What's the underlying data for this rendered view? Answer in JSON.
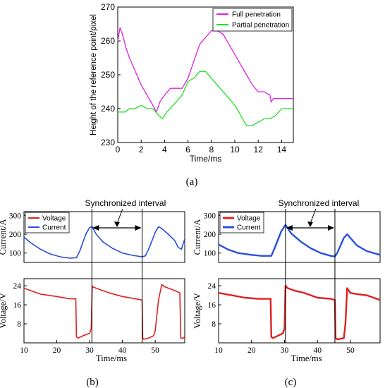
{
  "panel_labels": {
    "a": "(a)",
    "b": "(b)",
    "c": "(c)"
  },
  "annotations": {
    "sync_b": "Synchronized interval",
    "sync_c": "Synchronized interval"
  },
  "colors": {
    "full": "#e020e0",
    "partial": "#22e022",
    "voltage": "#e02020",
    "current": "#2a4ee0"
  },
  "chart_data": [
    {
      "id": "a",
      "type": "line",
      "xlabel": "Time/ms",
      "ylabel": "Height of the reference point/pixel",
      "xlim": [
        0,
        15
      ],
      "ylim": [
        230,
        270
      ],
      "xticks": [
        "0",
        "2",
        "4",
        "6",
        "8",
        "10",
        "12",
        "14"
      ],
      "yticks": [
        "230",
        "240",
        "250",
        "260",
        "270"
      ],
      "legend_position": "top-right",
      "series": [
        {
          "name": "Full penetration",
          "x": [
            0,
            0.2,
            0.4,
            0.7,
            1,
            1.5,
            2,
            2.5,
            3,
            3.3,
            3.6,
            4,
            4.5,
            5,
            5.5,
            6,
            6.5,
            7,
            7.5,
            8,
            8.5,
            9,
            9.5,
            10,
            10.5,
            11,
            11.5,
            12,
            12.5,
            13,
            13.1,
            13.3,
            14,
            15
          ],
          "y": [
            260,
            264,
            262,
            258,
            255,
            251,
            247,
            244,
            241,
            239,
            242,
            244,
            246,
            246,
            246,
            249,
            254,
            259,
            261,
            263,
            263,
            262,
            259,
            256,
            253,
            250,
            247,
            245,
            245,
            244,
            242,
            243,
            243,
            243
          ]
        },
        {
          "name": "Partial penetration",
          "x": [
            0,
            0.6,
            1,
            1.5,
            2,
            2.5,
            3,
            3.5,
            3.8,
            4.2,
            5,
            5.5,
            6,
            6.5,
            7,
            7.5,
            8,
            8.5,
            9,
            9.5,
            10,
            10.5,
            11,
            11.5,
            12,
            12.5,
            13,
            13.5,
            14,
            15
          ],
          "y": [
            239,
            239,
            240,
            240,
            241,
            240,
            240,
            238,
            237,
            239,
            242,
            244,
            248,
            249,
            251,
            251,
            249,
            247,
            245,
            243,
            241,
            238,
            235,
            235,
            236,
            237,
            237,
            238,
            240,
            240
          ]
        }
      ]
    },
    {
      "id": "b",
      "type": "line",
      "xlabel": "Time/ms",
      "xticks": [
        "10",
        "20",
        "30",
        "40",
        "50"
      ],
      "xlim": [
        10,
        59
      ],
      "current_axis": {
        "ylabel": "Current/A",
        "ylim": [
          50,
          320
        ],
        "yticks": [
          "100",
          "200",
          "300"
        ]
      },
      "voltage_axis": {
        "ylabel": "Voltage/V",
        "ylim": [
          0,
          27
        ],
        "yticks": [
          "8",
          "16",
          "24"
        ]
      },
      "vertical_markers": [
        30.7,
        46
      ],
      "legend_position": "top-left",
      "series": [
        {
          "name": "Voltage",
          "axis": "voltage",
          "x": [
            10,
            12,
            15,
            20,
            24,
            25.8,
            26,
            26.5,
            28,
            30,
            30.5,
            30.8,
            31,
            33,
            36,
            40,
            44,
            46,
            46.2,
            46.5,
            48,
            49.5,
            50,
            51,
            52,
            53,
            56,
            57.5,
            57.8,
            58.5,
            59
          ],
          "y": [
            23,
            22,
            20.5,
            19.5,
            18.5,
            18.5,
            2.5,
            2,
            3,
            4,
            6,
            24,
            23.5,
            22.5,
            21,
            19.5,
            18.5,
            18,
            2,
            1.5,
            2,
            3,
            5,
            18,
            24.5,
            23.5,
            22,
            21,
            2,
            2,
            2.5
          ]
        },
        {
          "name": "Current",
          "axis": "current",
          "x": [
            10,
            12,
            15,
            18,
            21,
            24,
            26,
            27,
            28,
            29,
            30,
            30.8,
            32,
            34,
            37,
            40,
            43,
            46,
            47,
            48,
            49,
            50,
            51,
            52,
            54,
            56,
            57,
            58,
            59
          ],
          "y": [
            185,
            155,
            120,
            95,
            80,
            73,
            75,
            110,
            160,
            205,
            235,
            240,
            200,
            160,
            125,
            100,
            88,
            80,
            85,
            120,
            165,
            210,
            240,
            230,
            200,
            165,
            130,
            120,
            175
          ]
        }
      ]
    },
    {
      "id": "c",
      "type": "line",
      "xlabel": "Time/ms",
      "xticks": [
        "10",
        "20",
        "30",
        "40",
        "50"
      ],
      "xlim": [
        10,
        59
      ],
      "current_axis": {
        "ylabel": "Current/A",
        "ylim": [
          50,
          320
        ],
        "yticks": [
          "100",
          "200",
          "300"
        ]
      },
      "voltage_axis": {
        "ylabel": "Voltage/V",
        "ylim": [
          0,
          27
        ],
        "yticks": [
          "8",
          "16",
          "24"
        ]
      },
      "vertical_markers": [
        30.3,
        45.3
      ],
      "legend_position": "top-left",
      "series": [
        {
          "name": "Voltage",
          "axis": "voltage",
          "x": [
            10,
            14,
            18,
            22,
            25.8,
            26,
            26.5,
            28,
            29.5,
            30,
            30.3,
            31,
            33,
            36,
            40,
            44,
            45.3,
            45.5,
            46,
            48,
            48.5,
            49,
            50,
            52,
            55,
            59
          ],
          "y": [
            21,
            20,
            19,
            18.5,
            18.5,
            2.5,
            2,
            3,
            4,
            6,
            24,
            23,
            22,
            21,
            19,
            18.5,
            18,
            2,
            1.5,
            2,
            8,
            23,
            21,
            20.5,
            20,
            18
          ]
        },
        {
          "name": "Current",
          "axis": "current",
          "x": [
            10,
            13,
            16,
            20,
            23,
            26,
            27,
            28,
            29,
            30.3,
            32,
            35,
            38,
            41,
            44,
            45.3,
            46,
            47,
            48,
            49,
            50,
            52,
            55,
            59
          ],
          "y": [
            145,
            118,
            100,
            90,
            85,
            85,
            125,
            170,
            215,
            250,
            205,
            160,
            125,
            100,
            85,
            82,
            100,
            140,
            180,
            200,
            180,
            140,
            110,
            90
          ]
        }
      ]
    }
  ]
}
